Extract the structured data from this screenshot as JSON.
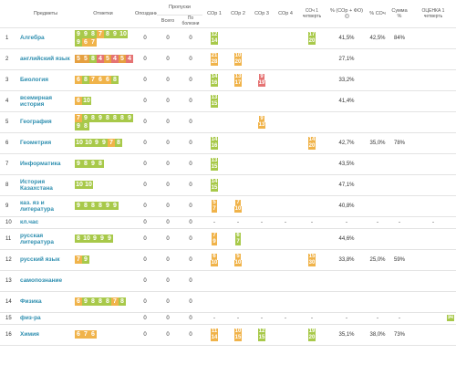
{
  "headers": {
    "subjects": "Предметы",
    "grades": "Отметки",
    "late": "Опоздания",
    "absences": "Пропуски",
    "total": "Всего",
    "sick": "По болезни",
    "sor1": "СОр 1",
    "sor2": "СОр 2",
    "sor3": "СОр 3",
    "sor4": "СОр 4",
    "soch": "СОч 1 четверть",
    "pct_sor_fo": "% (СОр + ФО)",
    "pct_soch": "% СОч",
    "sum_pct": "Сумма %",
    "final": "ОЦЕНКА 1 четверть"
  },
  "rows": [
    {
      "n": "1",
      "subject": "Алгебра",
      "grades": [
        "9",
        "9",
        "8",
        "7",
        "8",
        "9",
        "10",
        "9",
        "6",
        "7"
      ],
      "late": "0",
      "total": "0",
      "sick": "0",
      "sor1": [
        "12",
        "14"
      ],
      "sor2": [],
      "sor3": [],
      "sor4": [],
      "soch": [
        "17",
        "20"
      ],
      "pct": "41,5%",
      "pct_soch": "42,5%",
      "sum": "84%",
      "final": ""
    },
    {
      "n": "2",
      "subject": "английский язык",
      "grades": [
        "5",
        "5",
        "8",
        "4",
        "5",
        "4",
        "5",
        "4"
      ],
      "late": "0",
      "total": "0",
      "sick": "0",
      "sor1": [
        "21",
        "28"
      ],
      "sor2": [
        "10",
        "20"
      ],
      "sor3": [],
      "sor4": [],
      "soch": [],
      "pct": "27,1%",
      "pct_soch": "",
      "sum": "",
      "final": ""
    },
    {
      "n": "3",
      "subject": "Биология",
      "grades": [
        "6",
        "8",
        "7",
        "6",
        "6",
        "8"
      ],
      "late": "0",
      "total": "0",
      "sick": "0",
      "sor1": [
        "14",
        "16"
      ],
      "sor2": [
        "13",
        "17"
      ],
      "sor3": [
        "9",
        "19"
      ],
      "sor4": [],
      "soch": [],
      "pct": "33,2%",
      "pct_soch": "",
      "sum": "",
      "final": ""
    },
    {
      "n": "4",
      "subject": "всемирная история",
      "grades": [
        "6",
        "10"
      ],
      "late": "0",
      "total": "0",
      "sick": "0",
      "sor1": [
        "13",
        "15"
      ],
      "sor2": [],
      "sor3": [],
      "sor4": [],
      "soch": [],
      "pct": "41,4%",
      "pct_soch": "",
      "sum": "",
      "final": ""
    },
    {
      "n": "5",
      "subject": "География",
      "grades": [
        "7",
        "9",
        "8",
        "9",
        "8",
        "8",
        "8",
        "9",
        "9",
        "8"
      ],
      "late": "0",
      "total": "0",
      "sick": "0",
      "sor1": [],
      "sor2": [],
      "sor3": [
        "9",
        "13"
      ],
      "sor4": [],
      "soch": [],
      "pct": "",
      "pct_soch": "",
      "sum": "",
      "final": ""
    },
    {
      "n": "6",
      "subject": "Геометрия",
      "grades": [
        "10",
        "10",
        "9",
        "9",
        "7",
        "8"
      ],
      "late": "0",
      "total": "0",
      "sick": "0",
      "sor1": [
        "14",
        "16"
      ],
      "sor2": [],
      "sor3": [],
      "sor4": [],
      "soch": [
        "14",
        "20"
      ],
      "pct": "42,7%",
      "pct_soch": "35,0%",
      "sum": "78%",
      "final": ""
    },
    {
      "n": "7",
      "subject": "Информатика",
      "grades": [
        "9",
        "8",
        "9",
        "8"
      ],
      "late": "0",
      "total": "0",
      "sick": "0",
      "sor1": [
        "13",
        "15"
      ],
      "sor2": [],
      "sor3": [],
      "sor4": [],
      "soch": [],
      "pct": "43,5%",
      "pct_soch": "",
      "sum": "",
      "final": ""
    },
    {
      "n": "8",
      "subject": "История Казахстана",
      "grades": [
        "10",
        "10"
      ],
      "late": "0",
      "total": "0",
      "sick": "0",
      "sor1": [
        "14",
        "15"
      ],
      "sor2": [],
      "sor3": [],
      "sor4": [],
      "soch": [],
      "pct": "47,1%",
      "pct_soch": "",
      "sum": "",
      "final": ""
    },
    {
      "n": "9",
      "subject": "каз. яз и литература",
      "grades": [
        "9",
        "8",
        "8",
        "8",
        "9",
        "9"
      ],
      "late": "0",
      "total": "0",
      "sick": "0",
      "sor1": [
        "5",
        "7"
      ],
      "sor2": [
        "7",
        "10"
      ],
      "sor3": [],
      "sor4": [],
      "soch": [],
      "pct": "40,8%",
      "pct_soch": "",
      "sum": "",
      "final": ""
    },
    {
      "n": "10",
      "subject": "кл.час",
      "grades": [],
      "late": "0",
      "total": "0",
      "sick": "0",
      "sor1": [
        "-"
      ],
      "sor2": [
        "-"
      ],
      "sor3": [
        "-"
      ],
      "sor4": [
        "-"
      ],
      "soch": [
        "-"
      ],
      "pct": "-",
      "pct_soch": "-",
      "sum": "-",
      "final": "-",
      "short": true
    },
    {
      "n": "11",
      "subject": "русская литература",
      "grades": [
        "8",
        "10",
        "9",
        "9",
        "9"
      ],
      "late": "0",
      "total": "0",
      "sick": "0",
      "sor1": [
        "7",
        "9"
      ],
      "sor2": [
        "6",
        "7"
      ],
      "sor3": [],
      "sor4": [],
      "soch": [],
      "pct": "44,6%",
      "pct_soch": "",
      "sum": "",
      "final": ""
    },
    {
      "n": "12",
      "subject": "русский язык",
      "grades": [
        "7",
        "9"
      ],
      "late": "0",
      "total": "0",
      "sick": "0",
      "sor1": [
        "6",
        "10"
      ],
      "sor2": [
        "5",
        "10"
      ],
      "sor3": [],
      "sor4": [],
      "soch": [
        "15",
        "30"
      ],
      "pct": "33,8%",
      "pct_soch": "25,0%",
      "sum": "59%",
      "final": ""
    },
    {
      "n": "13",
      "subject": "самопознание",
      "grades": [],
      "late": "0",
      "total": "0",
      "sick": "0",
      "sor1": [],
      "sor2": [],
      "sor3": [],
      "sor4": [],
      "soch": [],
      "pct": "",
      "pct_soch": "",
      "sum": "",
      "final": ""
    },
    {
      "n": "14",
      "subject": "Физика",
      "grades": [
        "6",
        "9",
        "8",
        "8",
        "8",
        "7",
        "8"
      ],
      "late": "0",
      "total": "0",
      "sick": "0",
      "sor1": [],
      "sor2": [],
      "sor3": [],
      "sor4": [],
      "soch": [],
      "pct": "",
      "pct_soch": "",
      "sum": "",
      "final": ""
    },
    {
      "n": "15",
      "subject": "физ-ра",
      "grades": [],
      "late": "0",
      "total": "0",
      "sick": "0",
      "sor1": [
        "-"
      ],
      "sor2": [
        "-"
      ],
      "sor3": [
        "-"
      ],
      "sor4": [
        "-"
      ],
      "soch": [
        "-"
      ],
      "pct": "-",
      "pct_soch": "-",
      "sum": "-",
      "final": "зч",
      "short": true
    },
    {
      "n": "16",
      "subject": "Химия",
      "grades": [
        "6",
        "7",
        "6"
      ],
      "late": "0",
      "total": "0",
      "sick": "0",
      "sor1": [
        "11",
        "14"
      ],
      "sor2": [
        "10",
        "15"
      ],
      "sor3": [
        "12",
        "15"
      ],
      "sor4": [],
      "soch": [
        "19",
        "20"
      ],
      "pct": "35,1%",
      "pct_soch": "38,0%",
      "sum": "73%",
      "final": ""
    }
  ],
  "colors": {
    "high": "#a8c94a",
    "mid": "#f0b34a",
    "low": "#e57373",
    "subject": "#2f8fb0"
  }
}
